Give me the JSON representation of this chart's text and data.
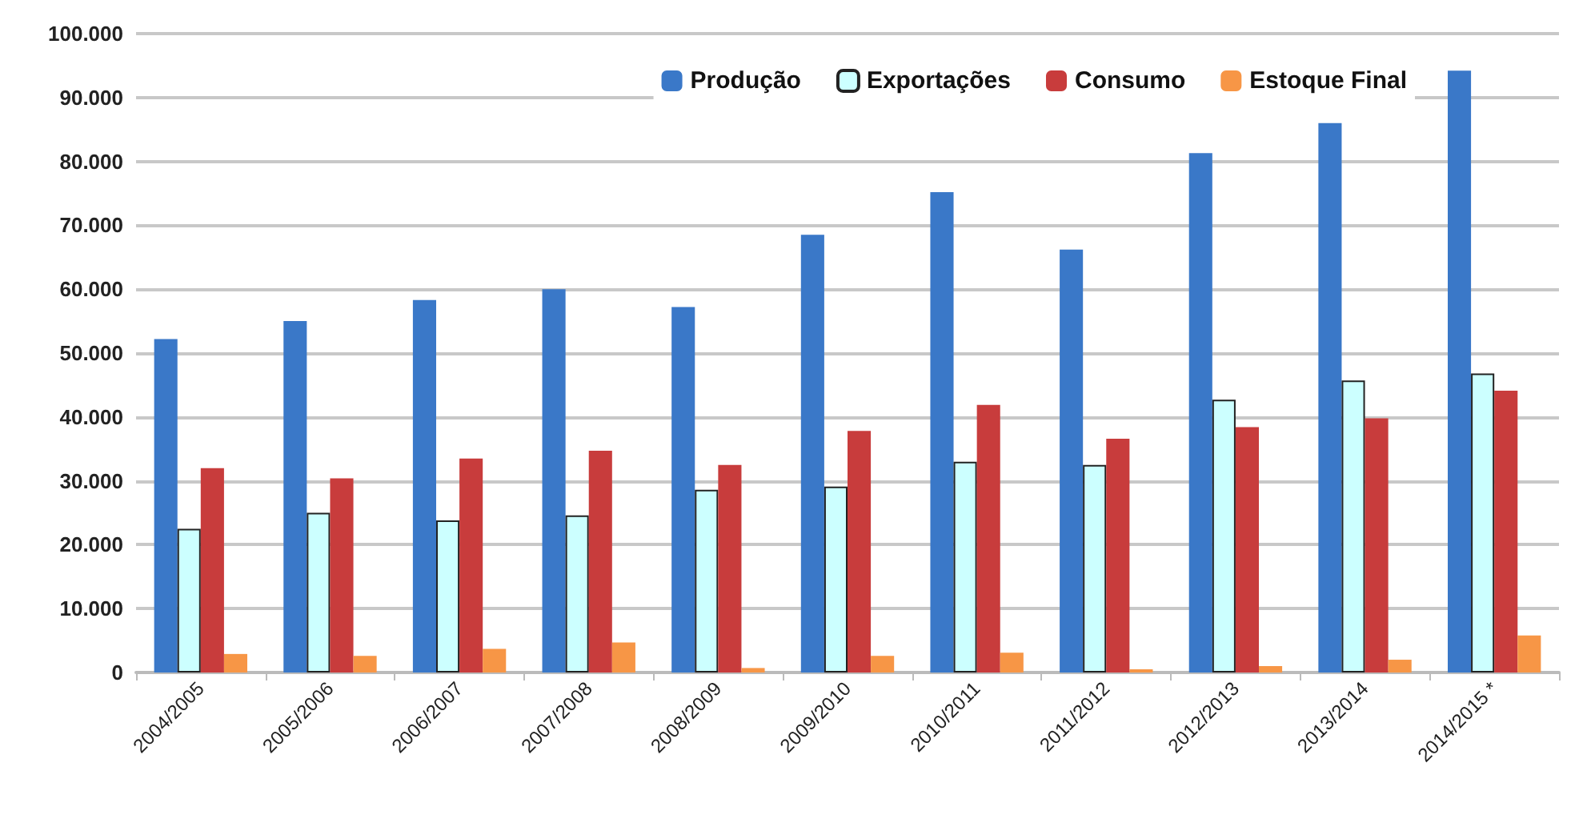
{
  "chart_data": {
    "type": "bar",
    "categories": [
      "2004/2005",
      "2005/2006",
      "2006/2007",
      "2007/2008",
      "2008/2009",
      "2009/2010",
      "2010/2011",
      "2011/2012",
      "2012/2013",
      "2013/2014",
      "2014/2015 *"
    ],
    "series": [
      {
        "name": "Produção",
        "color": "#3a78c8",
        "values": [
          52200,
          55000,
          58300,
          60000,
          57200,
          68500,
          75200,
          66200,
          81300,
          86000,
          94200
        ]
      },
      {
        "name": "Exportações",
        "color": "#ccffff",
        "values": [
          22500,
          25000,
          23800,
          24600,
          28600,
          29100,
          33000,
          32500,
          42700,
          45700,
          46800
        ]
      },
      {
        "name": "Consumo",
        "color": "#c83c3c",
        "values": [
          32000,
          30400,
          33500,
          34700,
          32500,
          37800,
          41900,
          36600,
          38400,
          39800,
          44100
        ]
      },
      {
        "name": "Estoque Final",
        "color": "#f79646",
        "values": [
          2900,
          2600,
          3700,
          4700,
          700,
          2600,
          3100,
          500,
          1000,
          2000,
          5800
        ]
      }
    ],
    "ylim": [
      0,
      100000
    ],
    "yticks": [
      {
        "value": 0,
        "label": "0"
      },
      {
        "value": 10000,
        "label": "10.000"
      },
      {
        "value": 20000,
        "label": "20.000"
      },
      {
        "value": 30000,
        "label": "30.000"
      },
      {
        "value": 40000,
        "label": "40.000"
      },
      {
        "value": 50000,
        "label": "50.000"
      },
      {
        "value": 60000,
        "label": "60.000"
      },
      {
        "value": 70000,
        "label": "70.000"
      },
      {
        "value": 80000,
        "label": "80.000"
      },
      {
        "value": 90000,
        "label": "90.000"
      },
      {
        "value": 100000,
        "label": "100.000"
      }
    ],
    "grid": "y",
    "legend": "top right"
  }
}
